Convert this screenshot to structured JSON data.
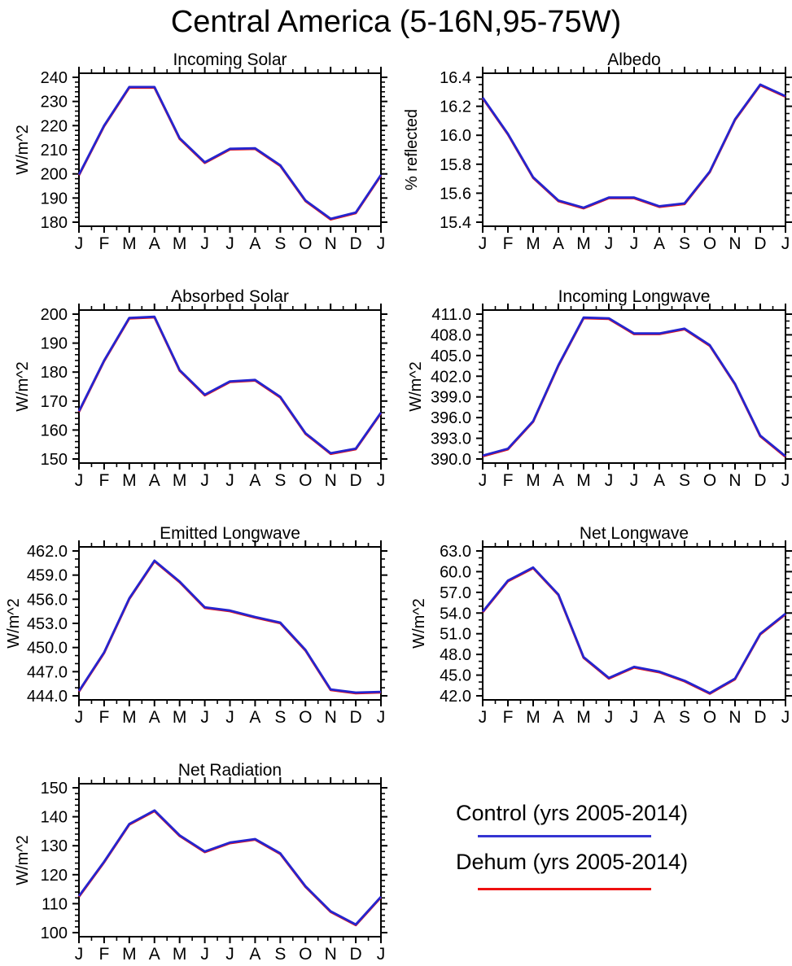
{
  "page_title": "Central America (5-16N,95-75W)",
  "months": [
    "J",
    "F",
    "M",
    "A",
    "M",
    "J",
    "J",
    "A",
    "S",
    "O",
    "N",
    "D",
    "J"
  ],
  "legend": {
    "entries": [
      {
        "label": "Control (yrs 2005-2014)",
        "color": "#3434d2"
      },
      {
        "label": "Dehum (yrs 2005-2014)",
        "color": "#ee1010"
      }
    ]
  },
  "colors": {
    "control_line": "#2525cf",
    "dehum_line": "#ee1010",
    "axis": "#000000"
  },
  "chart_data": [
    {
      "type": "line",
      "title": "Incoming Solar",
      "ylabel": "W/m^2",
      "xlabel": "",
      "ylim": [
        180,
        240
      ],
      "yticks": [
        180,
        190,
        200,
        210,
        220,
        230,
        240
      ],
      "ytick_labels": [
        "180",
        "190",
        "200",
        "210",
        "220",
        "230",
        "240"
      ],
      "minor_step": 2,
      "grid": false,
      "series": [
        {
          "name": "Control (yrs 2005-2014)",
          "color": "#2525cf",
          "values": [
            199.7,
            220.0,
            236.0,
            236.0,
            214.8,
            204.8,
            210.4,
            210.6,
            203.6,
            189.0,
            181.4,
            184.0,
            199.6
          ]
        },
        {
          "name": "Dehum (yrs 2005-2014)",
          "color": "#ee1010",
          "values": [
            199.7,
            220.0,
            236.0,
            236.0,
            214.8,
            204.8,
            210.4,
            210.6,
            203.6,
            189.0,
            181.4,
            184.0,
            199.6
          ]
        }
      ]
    },
    {
      "type": "line",
      "title": "Albedo",
      "ylabel": "% reflected",
      "xlabel": "",
      "ylim": [
        15.4,
        16.4
      ],
      "yticks": [
        15.4,
        15.6,
        15.8,
        16.0,
        16.2,
        16.4
      ],
      "ytick_labels": [
        "15.4",
        "15.6",
        "15.8",
        "16.0",
        "16.2",
        "16.4"
      ],
      "minor_step": 0.05,
      "grid": false,
      "series": [
        {
          "name": "Control (yrs 2005-2014)",
          "color": "#2525cf",
          "values": [
            16.26,
            16.01,
            15.71,
            15.55,
            15.5,
            15.57,
            15.57,
            15.51,
            15.53,
            15.75,
            16.11,
            16.35,
            16.27
          ]
        },
        {
          "name": "Dehum (yrs 2005-2014)",
          "color": "#ee1010",
          "values": [
            16.26,
            16.01,
            15.71,
            15.55,
            15.5,
            15.57,
            15.57,
            15.51,
            15.53,
            15.75,
            16.11,
            16.35,
            16.27
          ]
        }
      ]
    },
    {
      "type": "line",
      "title": "Absorbed Solar",
      "ylabel": "W/m^2",
      "xlabel": "",
      "ylim": [
        150,
        200
      ],
      "yticks": [
        150,
        160,
        170,
        180,
        190,
        200
      ],
      "ytick_labels": [
        "150",
        "160",
        "170",
        "180",
        "190",
        "200"
      ],
      "minor_step": 2,
      "grid": false,
      "series": [
        {
          "name": "Control (yrs 2005-2014)",
          "color": "#2525cf",
          "values": [
            166.5,
            184.0,
            198.7,
            199.1,
            180.7,
            172.2,
            176.8,
            177.3,
            171.5,
            158.9,
            152.0,
            153.6,
            166.0
          ]
        },
        {
          "name": "Dehum (yrs 2005-2014)",
          "color": "#ee1010",
          "values": [
            166.5,
            184.0,
            198.7,
            199.1,
            180.7,
            172.2,
            176.8,
            177.3,
            171.5,
            158.9,
            152.0,
            153.6,
            166.0
          ]
        }
      ]
    },
    {
      "type": "line",
      "title": "Incoming Longwave",
      "ylabel": "W/m^2",
      "xlabel": "",
      "ylim": [
        390.0,
        411.0
      ],
      "yticks": [
        390.0,
        393.0,
        396.0,
        399.0,
        402.0,
        405.0,
        408.0,
        411.0
      ],
      "ytick_labels": [
        "390.0",
        "393.0",
        "396.0",
        "399.0",
        "402.0",
        "405.0",
        "408.0",
        "411.0"
      ],
      "minor_step": 1,
      "grid": false,
      "series": [
        {
          "name": "Control (yrs 2005-2014)",
          "color": "#2525cf",
          "values": [
            390.5,
            391.5,
            395.5,
            403.6,
            410.5,
            410.4,
            408.2,
            408.2,
            408.9,
            406.5,
            400.9,
            393.4,
            390.4
          ]
        },
        {
          "name": "Dehum (yrs 2005-2014)",
          "color": "#ee1010",
          "values": [
            390.5,
            391.5,
            395.5,
            403.6,
            410.5,
            410.4,
            408.2,
            408.2,
            408.9,
            406.5,
            400.9,
            393.4,
            390.4
          ]
        }
      ]
    },
    {
      "type": "line",
      "title": "Emitted Longwave",
      "ylabel": "W/m^2",
      "xlabel": "",
      "ylim": [
        444.0,
        462.0
      ],
      "yticks": [
        444.0,
        447.0,
        450.0,
        453.0,
        456.0,
        459.0,
        462.0
      ],
      "ytick_labels": [
        "444.0",
        "447.0",
        "450.0",
        "453.0",
        "456.0",
        "459.0",
        "462.0"
      ],
      "minor_step": 1,
      "grid": false,
      "series": [
        {
          "name": "Control (yrs 2005-2014)",
          "color": "#2525cf",
          "values": [
            444.6,
            449.4,
            456.1,
            460.8,
            458.2,
            455.0,
            454.6,
            453.8,
            453.1,
            449.7,
            444.8,
            444.4,
            444.5
          ]
        },
        {
          "name": "Dehum (yrs 2005-2014)",
          "color": "#ee1010",
          "values": [
            444.6,
            449.4,
            456.1,
            460.8,
            458.2,
            455.0,
            454.6,
            453.8,
            453.1,
            449.7,
            444.8,
            444.4,
            444.5
          ]
        }
      ]
    },
    {
      "type": "line",
      "title": "Net Longwave",
      "ylabel": "W/m^2",
      "xlabel": "",
      "ylim": [
        42.0,
        63.0
      ],
      "yticks": [
        42.0,
        45.0,
        48.0,
        51.0,
        54.0,
        57.0,
        60.0,
        63.0
      ],
      "ytick_labels": [
        "42.0",
        "45.0",
        "48.0",
        "51.0",
        "54.0",
        "57.0",
        "60.0",
        "63.0"
      ],
      "minor_step": 1,
      "grid": false,
      "series": [
        {
          "name": "Control (yrs 2005-2014)",
          "color": "#2525cf",
          "values": [
            54.2,
            58.7,
            60.6,
            56.7,
            47.6,
            44.6,
            46.2,
            45.5,
            44.2,
            42.4,
            44.5,
            51.0,
            53.9
          ]
        },
        {
          "name": "Dehum (yrs 2005-2014)",
          "color": "#ee1010",
          "values": [
            54.2,
            58.7,
            60.6,
            56.7,
            47.6,
            44.6,
            46.2,
            45.5,
            44.2,
            42.4,
            44.5,
            51.0,
            53.9
          ]
        }
      ]
    },
    {
      "type": "line",
      "title": "Net Radiation",
      "ylabel": "W/m^2",
      "xlabel": "",
      "ylim": [
        100,
        150
      ],
      "yticks": [
        100,
        110,
        120,
        130,
        140,
        150
      ],
      "ytick_labels": [
        "100",
        "110",
        "120",
        "130",
        "140",
        "150"
      ],
      "minor_step": 2,
      "grid": false,
      "series": [
        {
          "name": "Control (yrs 2005-2014)",
          "color": "#2525cf",
          "values": [
            112.6,
            124.5,
            137.5,
            142.2,
            133.6,
            128.0,
            131.1,
            132.3,
            127.4,
            116.0,
            107.4,
            102.8,
            112.4
          ]
        },
        {
          "name": "Dehum (yrs 2005-2014)",
          "color": "#ee1010",
          "values": [
            112.6,
            124.5,
            137.5,
            142.2,
            133.6,
            128.0,
            131.1,
            132.3,
            127.4,
            116.0,
            107.4,
            102.8,
            112.4
          ]
        }
      ]
    }
  ]
}
